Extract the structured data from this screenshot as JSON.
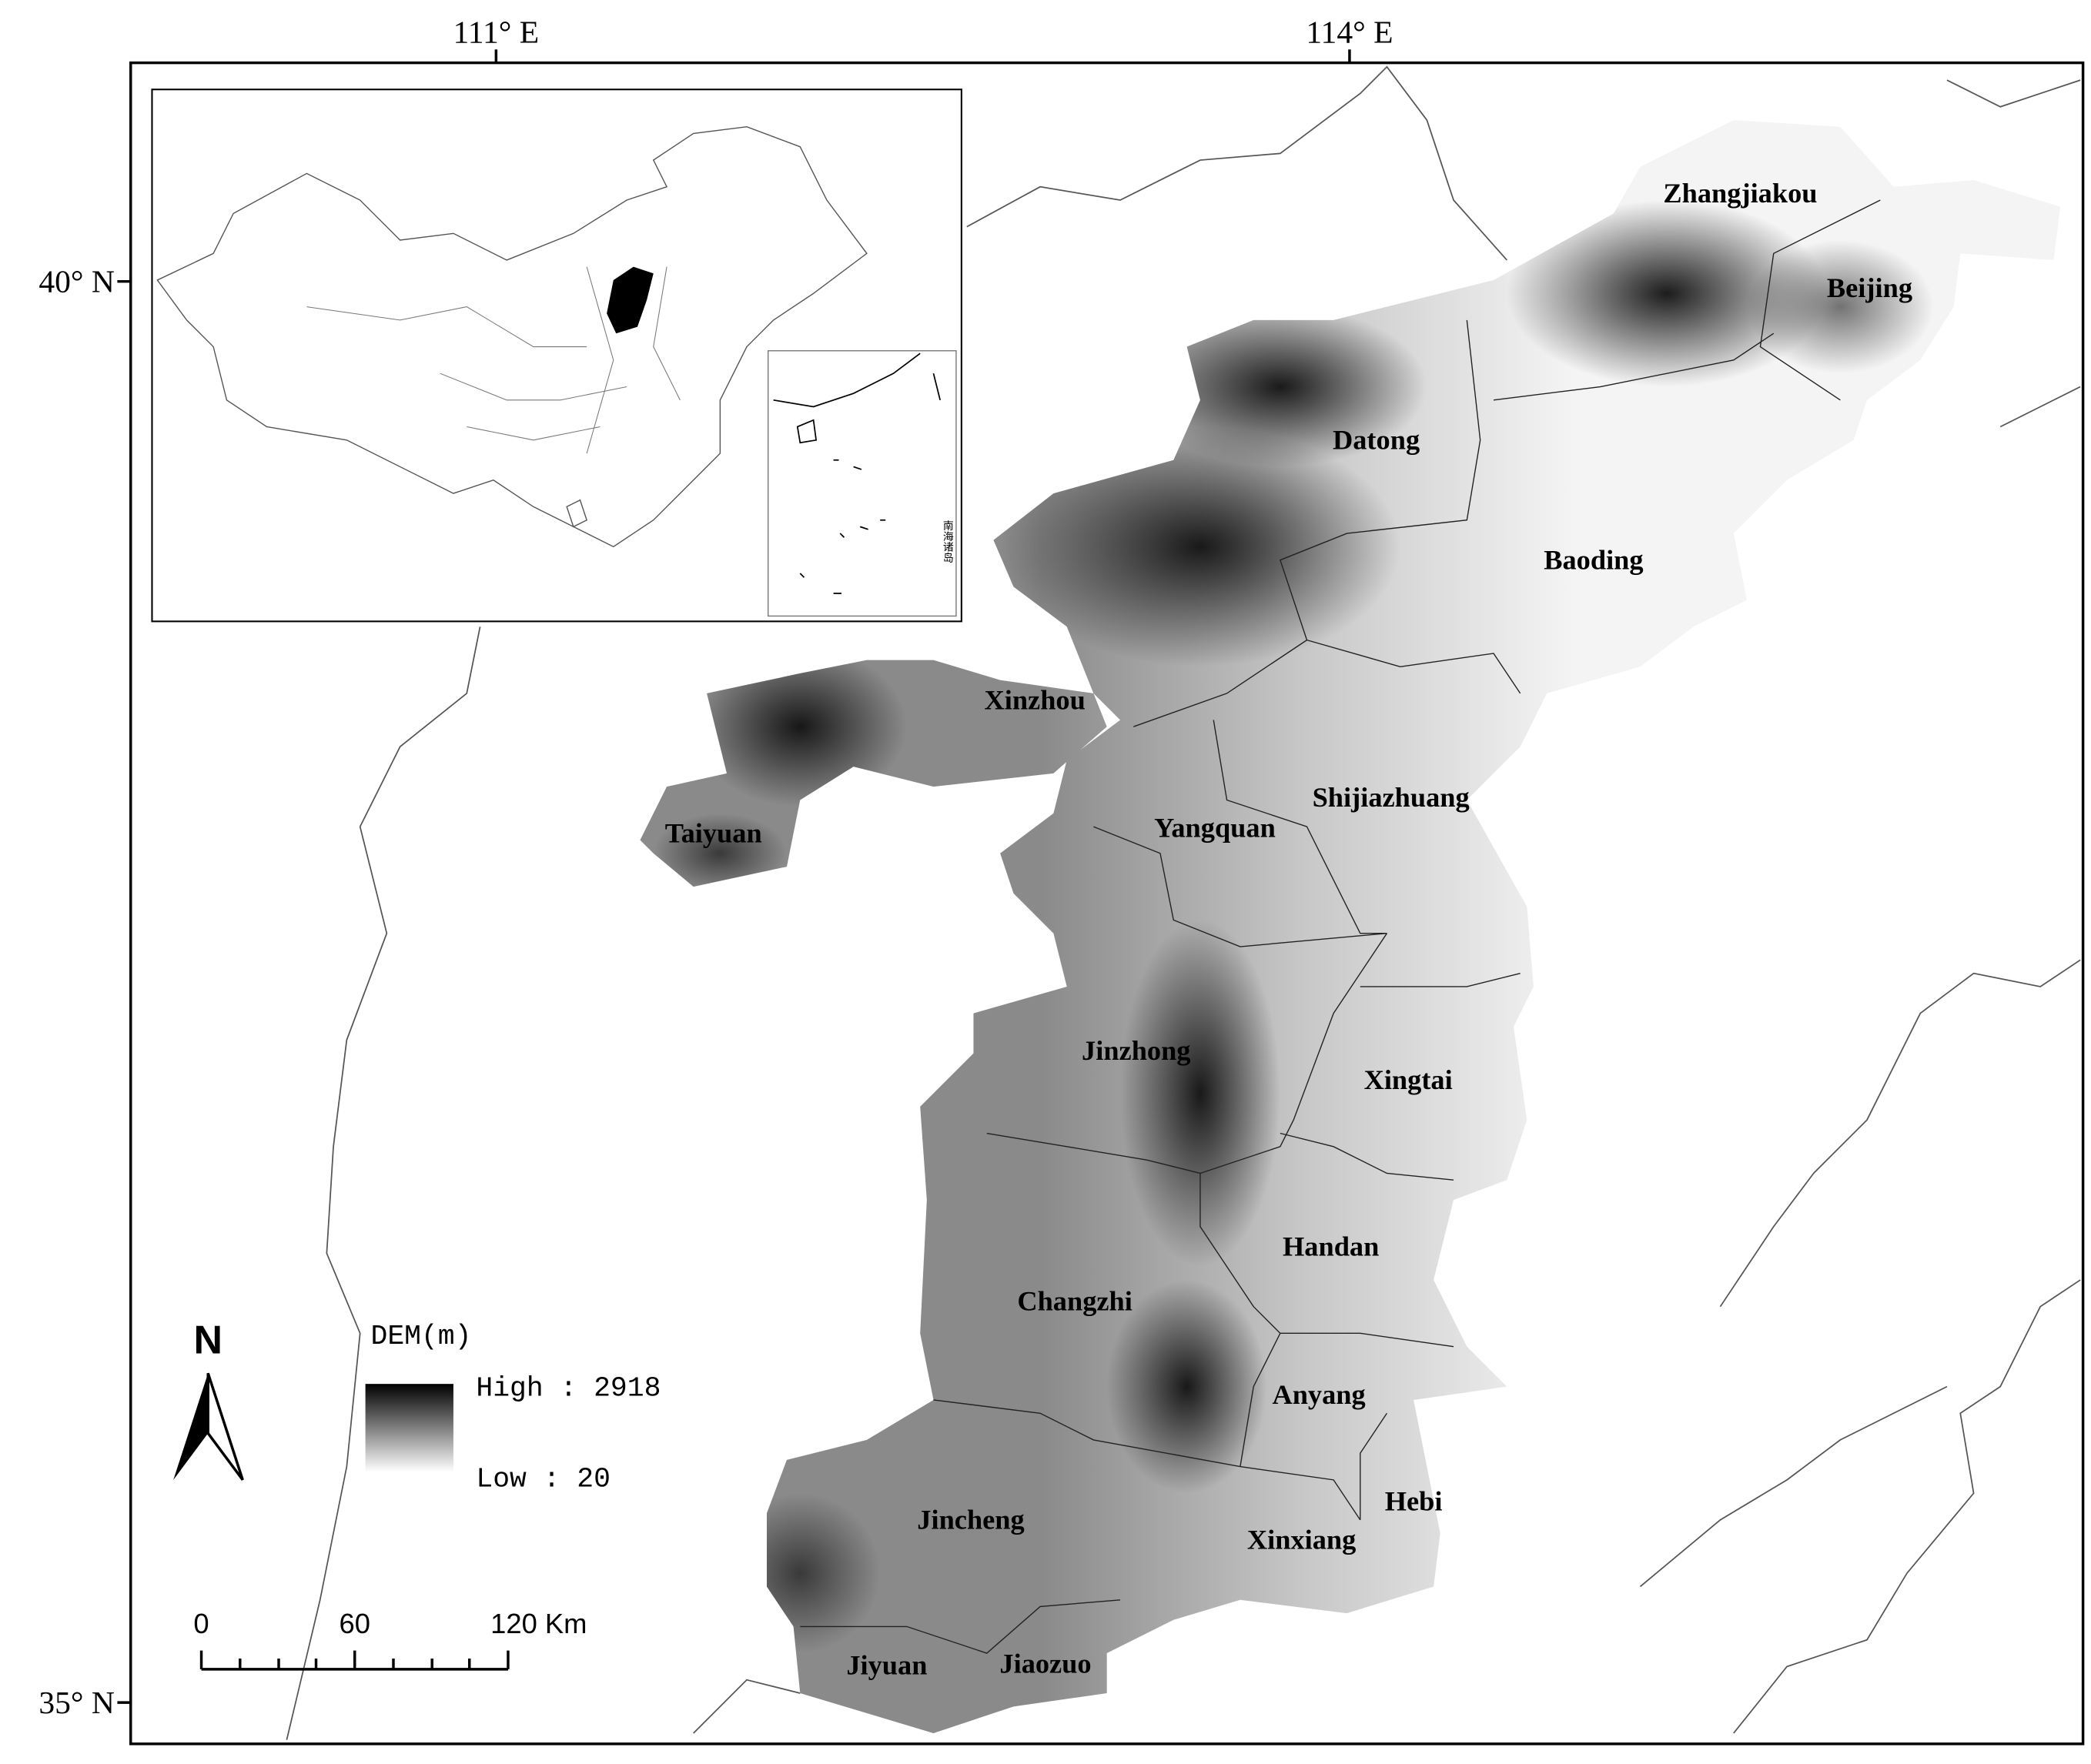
{
  "graticule": {
    "longitudes": [
      "111° E",
      "114° E"
    ],
    "latitudes": [
      "40° N",
      "35° N"
    ]
  },
  "cities": [
    "Zhangjiakou",
    "Beijing",
    "Datong",
    "Baoding",
    "Xinzhou",
    "Shijiazhuang",
    "Yangquan",
    "Taiyuan",
    "Jinzhong",
    "Xingtai",
    "Handan",
    "Changzhi",
    "Anyang",
    "Hebi",
    "Jincheng",
    "Xinxiang",
    "Jiyuan",
    "Jiaozuo"
  ],
  "legend": {
    "title": "DEM(m)",
    "high": "High : 2918",
    "low": "Low : 20"
  },
  "north_arrow": "N",
  "scale_bar": [
    "0",
    "60",
    "120 Km"
  ],
  "inset": {
    "label": "南海诸岛"
  }
}
